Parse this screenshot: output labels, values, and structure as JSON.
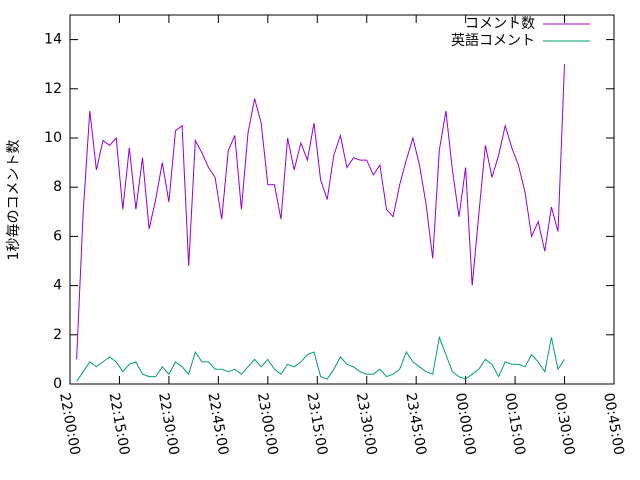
{
  "chart_data": {
    "type": "line",
    "ylabel": "1秒毎のコメント数",
    "x": [
      "22:02:00",
      "22:04:00",
      "22:06:00",
      "22:08:00",
      "22:10:00",
      "22:12:00",
      "22:14:00",
      "22:16:00",
      "22:18:00",
      "22:20:00",
      "22:22:00",
      "22:24:00",
      "22:26:00",
      "22:28:00",
      "22:30:00",
      "22:32:00",
      "22:34:00",
      "22:36:00",
      "22:38:00",
      "22:40:00",
      "22:42:00",
      "22:44:00",
      "22:46:00",
      "22:48:00",
      "22:50:00",
      "22:52:00",
      "22:54:00",
      "22:56:00",
      "22:58:00",
      "23:00:00",
      "23:02:00",
      "23:04:00",
      "23:06:00",
      "23:08:00",
      "23:10:00",
      "23:12:00",
      "23:14:00",
      "23:16:00",
      "23:18:00",
      "23:20:00",
      "23:22:00",
      "23:24:00",
      "23:26:00",
      "23:28:00",
      "23:30:00",
      "23:32:00",
      "23:34:00",
      "23:36:00",
      "23:38:00",
      "23:40:00",
      "23:42:00",
      "23:44:00",
      "23:46:00",
      "23:48:00",
      "23:50:00",
      "23:52:00",
      "23:54:00",
      "23:56:00",
      "23:58:00",
      "00:00:00",
      "00:02:00",
      "00:04:00",
      "00:06:00",
      "00:08:00",
      "00:10:00",
      "00:12:00",
      "00:14:00",
      "00:16:00",
      "00:18:00",
      "00:20:00",
      "00:22:00",
      "00:24:00",
      "00:26:00",
      "00:28:00",
      "00:30:00"
    ],
    "series": [
      {
        "name": "コメント数",
        "color": "#9400d3",
        "values": [
          1.0,
          7,
          11.1,
          8.7,
          9.9,
          9.7,
          10,
          7.1,
          9.6,
          7.1,
          9.2,
          6.3,
          7.5,
          9,
          7.4,
          10.3,
          10.5,
          4.8,
          9.9,
          9.4,
          8.8,
          8.4,
          6.7,
          9.5,
          10.1,
          7.1,
          10.2,
          11.6,
          10.6,
          8.1,
          8.1,
          6.7,
          10,
          8.7,
          9.8,
          9.1,
          10.6,
          8.3,
          7.5,
          9.3,
          10.1,
          8.8,
          9.2,
          9.1,
          9.1,
          8.5,
          8.9,
          7.1,
          6.8,
          8.1,
          9.1,
          10,
          8.9,
          7.3,
          5.1,
          9.5,
          11.1,
          8.7,
          6.8,
          8.8,
          4,
          6.9,
          9.7,
          8.4,
          9.3,
          10.5,
          9.6,
          8.9,
          7.8,
          6,
          6.6,
          5.4,
          7.2,
          6.2,
          13
        ]
      },
      {
        "name": "英語コメント",
        "color": "#009e73",
        "values": [
          0.1,
          0.5,
          0.9,
          0.7,
          0.9,
          1.1,
          0.9,
          0.5,
          0.8,
          0.9,
          0.4,
          0.3,
          0.3,
          0.7,
          0.4,
          0.9,
          0.7,
          0.4,
          1.3,
          0.9,
          0.9,
          0.6,
          0.6,
          0.5,
          0.6,
          0.4,
          0.7,
          1.0,
          0.7,
          1.0,
          0.6,
          0.4,
          0.8,
          0.7,
          0.9,
          1.2,
          1.3,
          0.3,
          0.2,
          0.6,
          1.1,
          0.8,
          0.7,
          0.5,
          0.4,
          0.4,
          0.6,
          0.3,
          0.4,
          0.6,
          1.3,
          0.9,
          0.7,
          0.5,
          0.4,
          1.9,
          1.2,
          0.5,
          0.3,
          0.2,
          0.4,
          0.6,
          1.0,
          0.8,
          0.3,
          0.9,
          0.8,
          0.8,
          0.7,
          1.2,
          0.9,
          0.5,
          1.9,
          0.6,
          1.0
        ]
      }
    ],
    "xlim": [
      "22:00:00",
      "00:45:00"
    ],
    "xticks": [
      "22:00:00",
      "22:15:00",
      "22:30:00",
      "22:45:00",
      "23:00:00",
      "23:15:00",
      "23:30:00",
      "23:45:00",
      "00:00:00",
      "00:15:00",
      "00:30:00",
      "00:45:00"
    ],
    "ylim": [
      0,
      15
    ],
    "yticks": [
      0,
      2,
      4,
      6,
      8,
      10,
      12,
      14
    ],
    "legend": "top-right"
  }
}
